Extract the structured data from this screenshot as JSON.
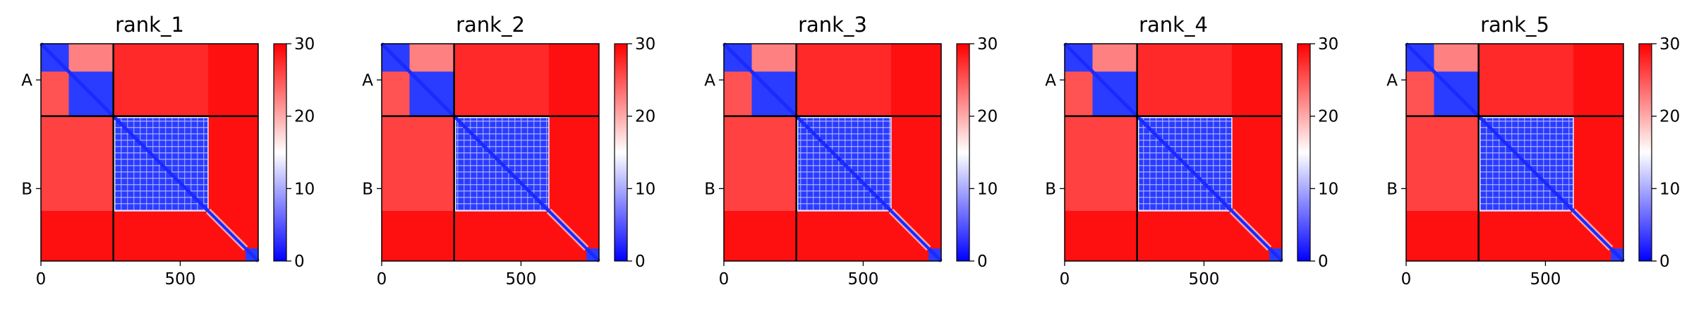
{
  "chart_data": [
    {
      "type": "heatmap",
      "title": "rank_1",
      "x_ticks": [
        0,
        500
      ],
      "y_tick_labels": [
        "A",
        "B"
      ],
      "chain_boundary": 260,
      "matrix_size": 780,
      "colorbar": {
        "ticks": [
          0,
          10,
          20,
          30
        ],
        "range": [
          0,
          30
        ],
        "colormap": "bwr"
      }
    },
    {
      "type": "heatmap",
      "title": "rank_2",
      "x_ticks": [
        0,
        500
      ],
      "y_tick_labels": [
        "A",
        "B"
      ],
      "chain_boundary": 260,
      "matrix_size": 780,
      "colorbar": {
        "ticks": [
          0,
          10,
          20,
          30
        ],
        "range": [
          0,
          30
        ],
        "colormap": "bwr"
      }
    },
    {
      "type": "heatmap",
      "title": "rank_3",
      "x_ticks": [
        0,
        500
      ],
      "y_tick_labels": [
        "A",
        "B"
      ],
      "chain_boundary": 260,
      "matrix_size": 780,
      "colorbar": {
        "ticks": [
          0,
          10,
          20,
          30
        ],
        "range": [
          0,
          30
        ],
        "colormap": "bwr"
      }
    },
    {
      "type": "heatmap",
      "title": "rank_4",
      "x_ticks": [
        0,
        500
      ],
      "y_tick_labels": [
        "A",
        "B"
      ],
      "chain_boundary": 260,
      "matrix_size": 780,
      "colorbar": {
        "ticks": [
          0,
          10,
          20,
          30
        ],
        "range": [
          0,
          30
        ],
        "colormap": "bwr"
      }
    },
    {
      "type": "heatmap",
      "title": "rank_5",
      "x_ticks": [
        0,
        500
      ],
      "y_tick_labels": [
        "A",
        "B"
      ],
      "chain_boundary": 260,
      "matrix_size": 780,
      "colorbar": {
        "ticks": [
          0,
          10,
          20,
          30
        ],
        "range": [
          0,
          30
        ],
        "colormap": "bwr"
      }
    }
  ]
}
